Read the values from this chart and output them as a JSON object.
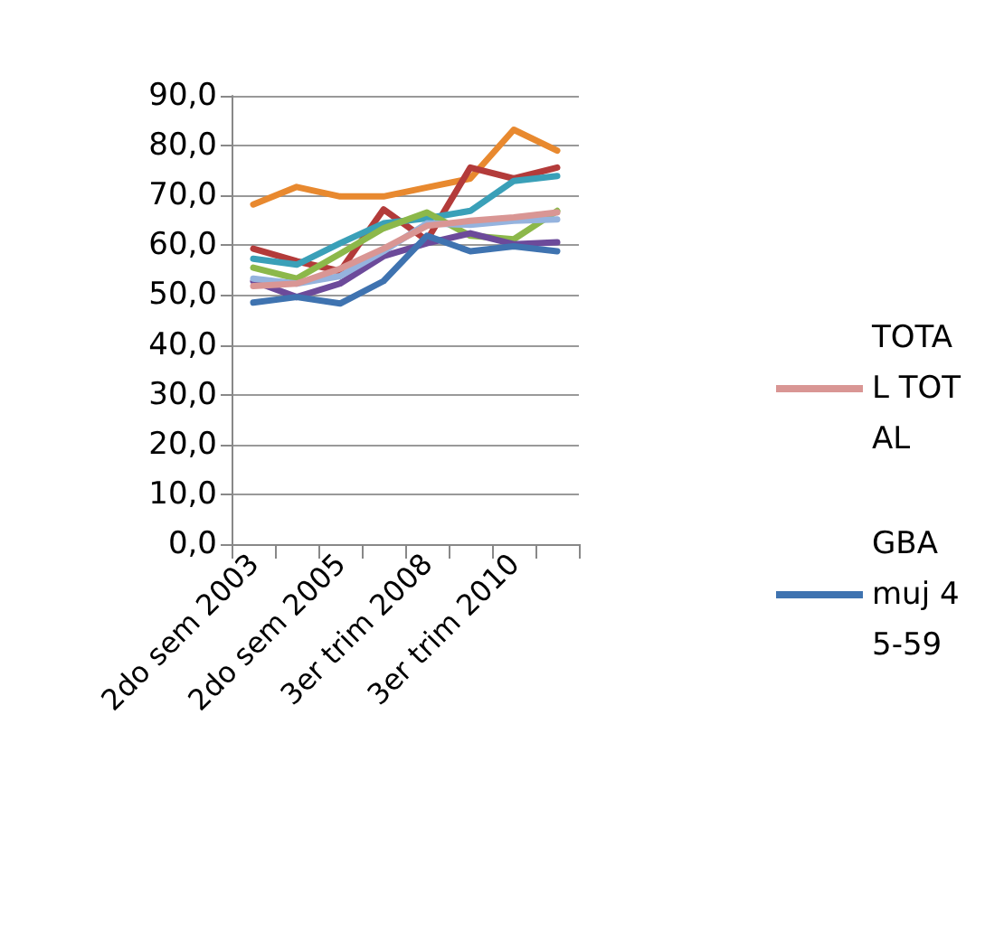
{
  "chart_data": {
    "type": "line",
    "categories": [
      "2do sem 2003",
      null,
      "2do sem 2005",
      null,
      "3er trim 2008",
      null,
      "3er trim 2010",
      null
    ],
    "ylim": [
      0,
      90
    ],
    "yticks": [
      {
        "value": 0,
        "label": "0,0"
      },
      {
        "value": 10,
        "label": "10,0"
      },
      {
        "value": 20,
        "label": "20,0"
      },
      {
        "value": 30,
        "label": "30,0"
      },
      {
        "value": 40,
        "label": "40,0"
      },
      {
        "value": 50,
        "label": "50,0"
      },
      {
        "value": 60,
        "label": "60,0"
      },
      {
        "value": 70,
        "label": "70,0"
      },
      {
        "value": 80,
        "label": "80,0"
      },
      {
        "value": 90,
        "label": "90,0"
      }
    ],
    "grid": "y",
    "legend": "right",
    "marker": "none",
    "line_style": "solid",
    "series": [
      {
        "color": "#e8892f",
        "values": [
          68.2,
          71.7,
          69.8,
          69.8,
          71.6,
          73.4,
          83.2,
          79.0
        ]
      },
      {
        "color": "#b33b3a",
        "values": [
          59.3,
          56.8,
          54.8,
          67.2,
          61.0,
          75.6,
          73.4,
          75.6
        ]
      },
      {
        "color": "#3aa0b8",
        "values": [
          57.3,
          56.1,
          60.4,
          64.4,
          65.4,
          66.9,
          72.9,
          73.9
        ]
      },
      {
        "color": "#8cb84a",
        "values": [
          55.5,
          53.3,
          58.3,
          63.4,
          66.6,
          61.9,
          61.2,
          66.9
        ]
      },
      {
        "color": "#6c4a9a",
        "values": [
          52.8,
          49.6,
          52.3,
          57.8,
          60.4,
          62.4,
          60.2,
          60.6
        ]
      },
      {
        "color": "#95b3de",
        "values": [
          53.3,
          52.3,
          53.8,
          58.8,
          64.4,
          64.1,
          64.9,
          65.2
        ]
      },
      {
        "name": "TOTAL TOTAL",
        "color": "#d99694",
        "values": [
          51.8,
          52.3,
          55.3,
          59.3,
          63.9,
          64.9,
          65.6,
          66.6
        ]
      },
      {
        "name": "GBA muj 45-59",
        "color": "#3f73b0",
        "values": [
          48.5,
          49.6,
          48.3,
          52.8,
          61.9,
          58.8,
          59.8,
          58.8
        ]
      }
    ]
  }
}
